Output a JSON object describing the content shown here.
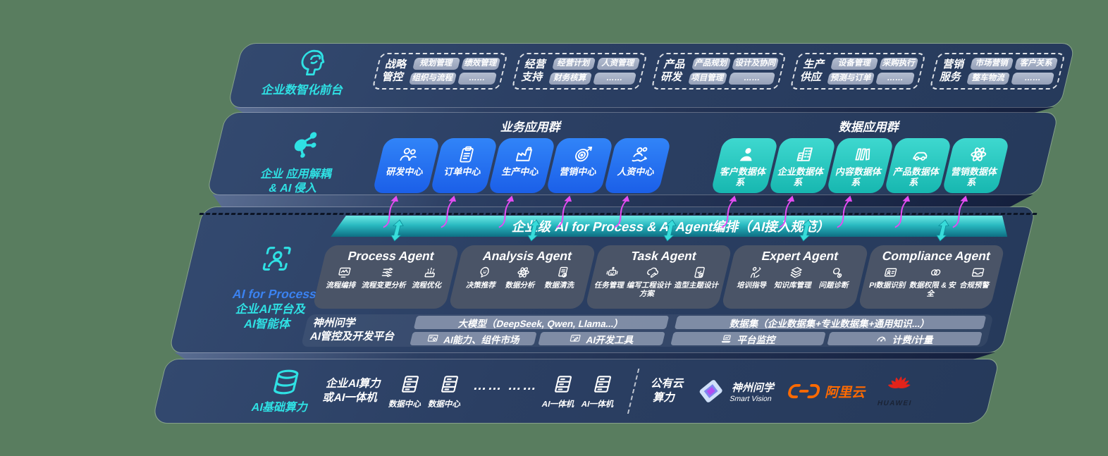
{
  "colors": {
    "page_bg": "#597d5f",
    "panel_navy": "#2b3f63",
    "app_blue": "#2473f4",
    "data_teal": "#2cc9c4",
    "banner_teal": "#2ed3d4",
    "arrow_magenta": "#e44cf2",
    "accent_cyan": "#2fe1e4",
    "accent_blue": "#3b82f0",
    "alibaba_orange": "#ff6a00",
    "huawei_red": "#e2231a"
  },
  "frontstage": {
    "label": "企业数智化前台",
    "icon": "brain-head-icon",
    "groups": [
      {
        "title": "战略管控",
        "chips": [
          "规划管理",
          "绩效管理",
          "组织与流程",
          "……"
        ]
      },
      {
        "title": "经营支持",
        "chips": [
          "经营计划",
          "人资管理",
          "财务核算",
          "……"
        ]
      },
      {
        "title": "产品研发",
        "chips": [
          "产品规划",
          "设计及协同",
          "项目管理",
          "……"
        ]
      },
      {
        "title": "生产供应",
        "chips": [
          "设备管理",
          "采购执行",
          "预测与订单",
          "……"
        ]
      },
      {
        "title": "营销服务",
        "chips": [
          "市场营销",
          "客户关系",
          "整车物流",
          "……"
        ]
      }
    ]
  },
  "decouple": {
    "label": "企业 应用解耦\n& AI 侵入",
    "icon": "molecule-icon",
    "business_group": {
      "header": "业务应用群",
      "items": [
        {
          "label": "研发中心",
          "icon": "team-icon"
        },
        {
          "label": "订单中心",
          "icon": "clipboard-icon"
        },
        {
          "label": "生产中心",
          "icon": "factory-icon"
        },
        {
          "label": "营销中心",
          "icon": "target-icon"
        },
        {
          "label": "人资中心",
          "icon": "people-up-icon"
        }
      ]
    },
    "data_group": {
      "header": "数据应用群",
      "items": [
        {
          "label": "客户数据体系",
          "icon": "person-icon"
        },
        {
          "label": "企业数据体系",
          "icon": "building-icon"
        },
        {
          "label": "内容数据体系",
          "icon": "library-icon"
        },
        {
          "label": "产品数据体系",
          "icon": "car-icon"
        },
        {
          "label": "营销数据体系",
          "icon": "atom-icon"
        }
      ]
    }
  },
  "ai_layer": {
    "label_en": "AI for Process",
    "label_cn": "企业AI平台及\nAI智能体",
    "icon": "person-scan-icon",
    "banner": "企业级 AI for Process & AI Agent编排（AI接入规范）",
    "agents": [
      {
        "title": "Process Agent",
        "items": [
          {
            "label": "流程编排",
            "icon": "flow-monitor-icon"
          },
          {
            "label": "流程变更分析",
            "icon": "flow-sliders-icon"
          },
          {
            "label": "流程优化",
            "icon": "flow-optimize-icon"
          }
        ]
      },
      {
        "title": "Analysis Agent",
        "items": [
          {
            "label": "决策推荐",
            "icon": "decision-chat-icon"
          },
          {
            "label": "数据分析",
            "icon": "atom-icon"
          },
          {
            "label": "数据清洗",
            "icon": "data-clean-icon"
          }
        ]
      },
      {
        "title": "Task Agent",
        "items": [
          {
            "label": "任务管理",
            "icon": "task-robot-icon"
          },
          {
            "label": "编写工程设计方案",
            "icon": "cloud-pen-icon"
          },
          {
            "label": "造型主题设计",
            "icon": "tablet-check-icon"
          }
        ]
      },
      {
        "title": "Expert Agent",
        "items": [
          {
            "label": "培训指导",
            "icon": "trainer-icon"
          },
          {
            "label": "知识库管理",
            "icon": "layers-icon"
          },
          {
            "label": "问题诊断",
            "icon": "diagnose-icon"
          }
        ]
      },
      {
        "title": "Compliance Agent",
        "items": [
          {
            "label": "PI数据识别",
            "icon": "id-card-icon"
          },
          {
            "label": "数据权限 & 安全",
            "icon": "permission-icon"
          },
          {
            "label": "合规预警",
            "icon": "inbox-icon"
          }
        ]
      }
    ],
    "platform": {
      "label": "神州问学\nAI管控及开发平台",
      "model_bar": "大模型（DeepSeek, Qwen, Llama...）",
      "left_bars": [
        {
          "label": "AI能力、组件市场",
          "icon": "window-gear-icon"
        },
        {
          "label": "AI开发工具",
          "icon": "window-pen-icon"
        }
      ],
      "dataset_bar": "数据集（企业数据集+专业数据集+通用知识...）",
      "right_bars": [
        {
          "label": "平台监控",
          "icon": "laptop-chart-icon"
        },
        {
          "label": "计费/计量",
          "icon": "gauge-icon"
        }
      ]
    }
  },
  "infra": {
    "label": "AI基础算力",
    "icon": "database-icon",
    "compute_label": "企业AI算力\n或AI一体机",
    "datacenters": [
      {
        "label": "数据中心",
        "icon": "server-icon"
      },
      {
        "label": "数据中心",
        "icon": "server-icon"
      }
    ],
    "ellipsis": "…… ……",
    "appliances": [
      {
        "label": "AI一体机",
        "icon": "server-icon"
      },
      {
        "label": "AI一体机",
        "icon": "server-icon"
      }
    ],
    "public_cloud": "公有云\n算力",
    "vendors": [
      {
        "name": "神州问学",
        "sub": "Smart Vision",
        "icon": "smartvision-logo"
      },
      {
        "name": "阿里云",
        "icon": "aliyun-logo"
      },
      {
        "name": "HUAWEI",
        "icon": "huawei-logo"
      }
    ]
  }
}
